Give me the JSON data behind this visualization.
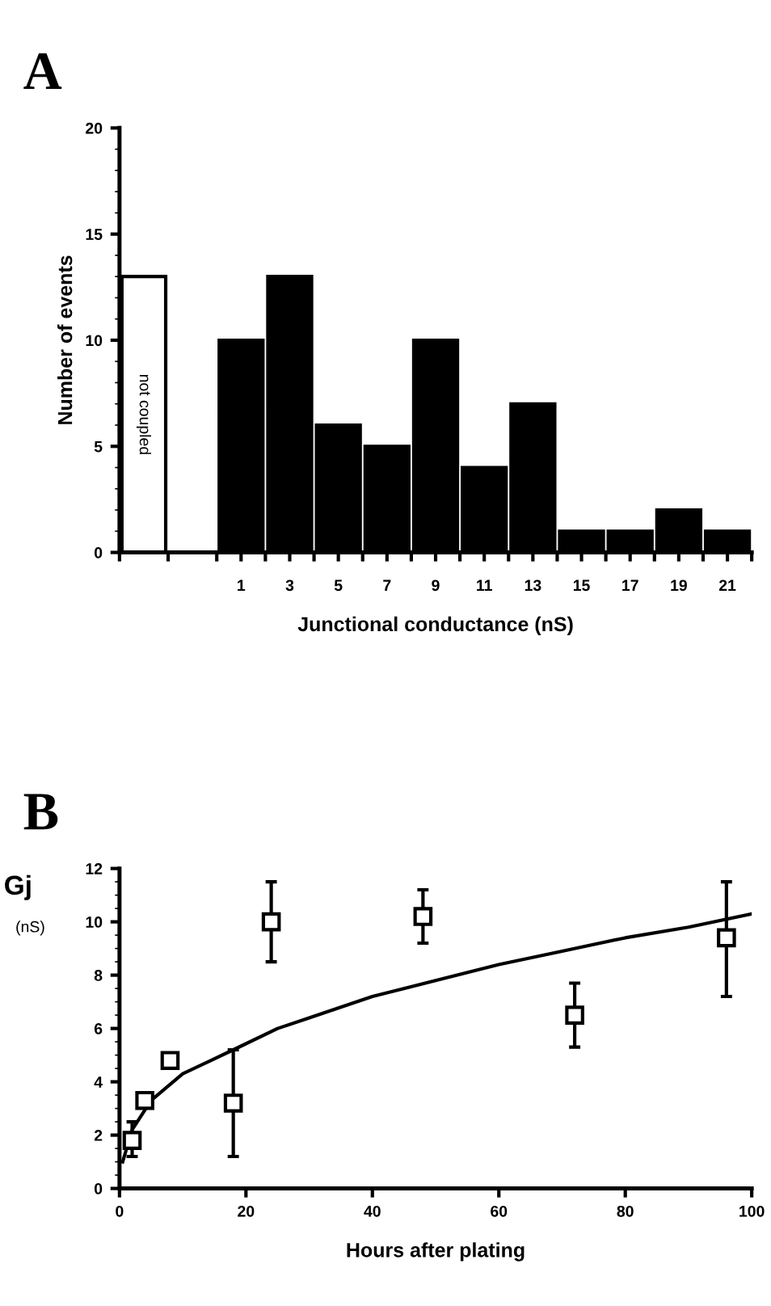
{
  "chart_data": [
    {
      "type": "bar",
      "title": "A",
      "xlabel": "Junctional conductance (nS)",
      "ylabel": "Number of events",
      "categories": [
        "not coupled",
        null,
        "1",
        "3",
        "5",
        "7",
        "9",
        "11",
        "13",
        "15",
        "17",
        "19",
        "21"
      ],
      "values": [
        13,
        null,
        10,
        13,
        6,
        5,
        10,
        4,
        7,
        1,
        1,
        2,
        1
      ],
      "colors": [
        "#ffffff",
        "#000000",
        "#000000",
        "#000000",
        "#000000",
        "#000000",
        "#000000",
        "#000000",
        "#000000",
        "#000000",
        "#000000",
        "#000000",
        "#000000"
      ],
      "ylim": [
        0,
        20
      ],
      "yticks": [
        0,
        5,
        10,
        15,
        20
      ],
      "grid": false,
      "legend": false
    },
    {
      "type": "scatter",
      "title": "B",
      "xlabel": "Hours after plating",
      "ylabel": "Gj",
      "annotations": [
        "(nS)"
      ],
      "xlim": [
        0,
        100
      ],
      "xticks": [
        0,
        20,
        40,
        60,
        80,
        100
      ],
      "ylim": [
        0,
        12
      ],
      "yticks": [
        0,
        2,
        4,
        6,
        8,
        10,
        12
      ],
      "grid": false,
      "legend": false,
      "series": [
        {
          "type": "scatter",
          "marker": "square",
          "color": "#000000",
          "x": [
            2,
            4,
            8,
            18,
            24,
            48,
            72,
            96
          ],
          "values": [
            1.8,
            3.3,
            4.8,
            3.2,
            10,
            10.2,
            6.5,
            9.4
          ],
          "errors": [
            [
              1.2,
              2.5
            ],
            null,
            null,
            [
              1.2,
              5.2
            ],
            [
              8.5,
              11.5
            ],
            [
              9.2,
              11.2
            ],
            [
              5.3,
              7.7
            ],
            [
              7.2,
              11.5
            ]
          ]
        },
        {
          "type": "line",
          "marker": "none",
          "line_style": "solid",
          "color": "#000000",
          "x": [
            0.5,
            2,
            5,
            10,
            18,
            25,
            30,
            40,
            50,
            60,
            70,
            80,
            90,
            100
          ],
          "values": [
            1.0,
            2.2,
            3.3,
            4.3,
            5.2,
            6.0,
            6.4,
            7.2,
            7.8,
            8.4,
            8.9,
            9.4,
            9.8,
            10.3
          ]
        }
      ]
    }
  ]
}
